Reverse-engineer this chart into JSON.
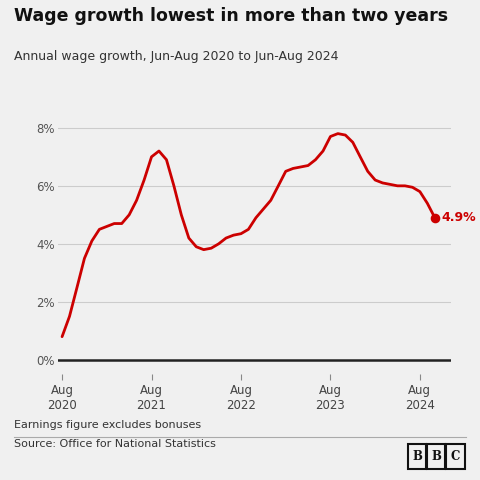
{
  "title": "Wage growth lowest in more than two years",
  "subtitle": "Annual wage growth, Jun-Aug 2020 to Jun-Aug 2024",
  "footnote": "Earnings figure excludes bonuses",
  "source": "Source: Office for National Statistics",
  "bbc_label": "BBC",
  "line_color": "#cc0000",
  "bg_color": "#f0f0f0",
  "yticks": [
    0,
    2,
    4,
    6,
    8
  ],
  "annotation_value": "4.9%",
  "annotation_color": "#cc0000",
  "x_values": [
    0.0,
    0.083,
    0.167,
    0.25,
    0.333,
    0.417,
    0.5,
    0.583,
    0.667,
    0.75,
    0.833,
    0.917,
    1.0,
    1.083,
    1.167,
    1.25,
    1.333,
    1.417,
    1.5,
    1.583,
    1.667,
    1.75,
    1.833,
    1.917,
    2.0,
    2.083,
    2.167,
    2.25,
    2.333,
    2.417,
    2.5,
    2.583,
    2.667,
    2.75,
    2.833,
    2.917,
    3.0,
    3.083,
    3.167,
    3.25,
    3.333,
    3.417,
    3.5,
    3.583,
    3.667,
    3.75,
    3.833,
    3.917,
    4.0,
    4.083,
    4.167
  ],
  "y_values": [
    0.8,
    1.5,
    2.5,
    3.5,
    4.1,
    4.5,
    4.6,
    4.7,
    4.7,
    5.0,
    5.5,
    6.2,
    7.0,
    7.2,
    6.9,
    6.0,
    5.0,
    4.2,
    3.9,
    3.8,
    3.85,
    4.0,
    4.2,
    4.3,
    4.35,
    4.5,
    4.9,
    5.2,
    5.5,
    6.0,
    6.5,
    6.6,
    6.65,
    6.7,
    6.9,
    7.2,
    7.7,
    7.8,
    7.75,
    7.5,
    7.0,
    6.5,
    6.2,
    6.1,
    6.05,
    6.0,
    6.0,
    5.95,
    5.8,
    5.4,
    4.9
  ],
  "xtick_positions": [
    0.0,
    1.0,
    2.0,
    3.0,
    4.0
  ],
  "xtick_labels": [
    "Aug\n2020",
    "Aug\n2021",
    "Aug\n2022",
    "Aug\n2023",
    "Aug\n2024"
  ],
  "xlim": [
    -0.05,
    4.35
  ],
  "ylim": [
    -0.5,
    8.6
  ]
}
